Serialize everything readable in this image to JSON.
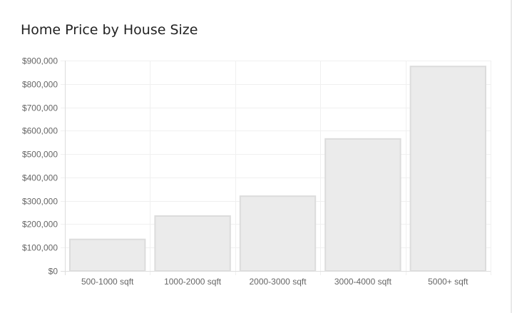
{
  "chart_data": {
    "type": "bar",
    "title": "Home Price by House Size",
    "xlabel": "",
    "ylabel": "",
    "categories": [
      "500-1000 sqft",
      "1000-2000 sqft",
      "2000-3000 sqft",
      "3000-4000 sqft",
      "5000+ sqft"
    ],
    "values": [
      135000,
      235000,
      320000,
      565000,
      875000
    ],
    "ylim": [
      0,
      900000
    ],
    "yticks": [
      0,
      100000,
      200000,
      300000,
      400000,
      500000,
      600000,
      700000,
      800000,
      900000
    ],
    "ytick_labels": [
      "$0",
      "$100,000",
      "$200,000",
      "$300,000",
      "$400,000",
      "$500,000",
      "$600,000",
      "$700,000",
      "$800,000",
      "$900,000"
    ],
    "grid": true,
    "legend": "none",
    "colors": {
      "bar_fill": "#ebebeb",
      "bar_stroke": "#dcdcdc",
      "grid": "#f0f0f0",
      "axis": "#dddddd"
    }
  }
}
